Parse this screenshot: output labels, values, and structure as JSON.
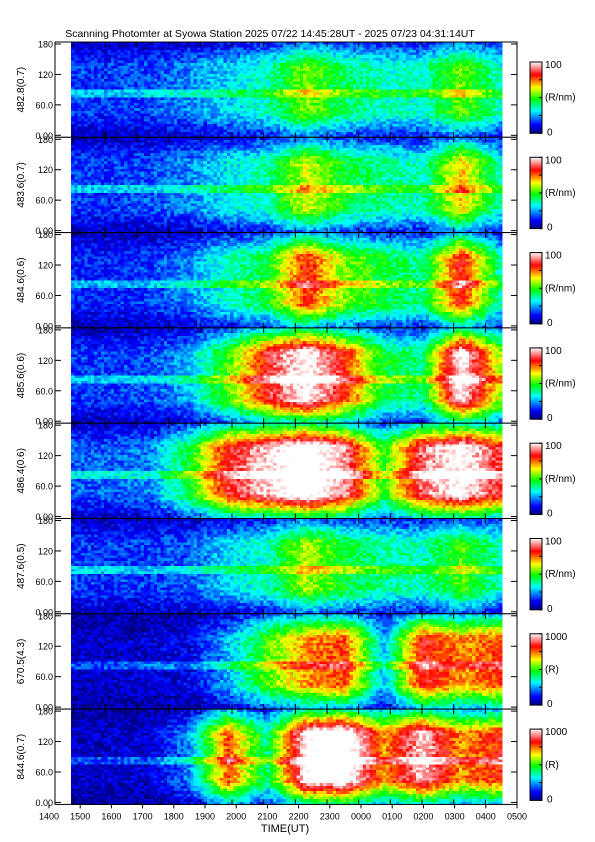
{
  "chart_data": {
    "type": "heatmap",
    "title": "Scanning Photomter at Syowa Station  2025 07/22 14:45:28UT - 2025 07/23 04:31:14UT",
    "xlabel": "TIME(UT)",
    "x_ticks": [
      "1400",
      "1500",
      "1600",
      "1700",
      "1800",
      "1900",
      "2000",
      "2100",
      "2200",
      "2300",
      "0000",
      "0100",
      "0200",
      "0300",
      "0400",
      "0500"
    ],
    "y_ticks": [
      "0.00",
      "60.0",
      "120",
      "180"
    ],
    "y_range": [
      0,
      180
    ],
    "colorscale": [
      "#000080",
      "#0000ff",
      "#00ffff",
      "#00ff00",
      "#ffff00",
      "#ff0000",
      "#ffffff"
    ],
    "panels": [
      {
        "ylabel": "482.8(0.7)",
        "unit": "(R/nm)",
        "cmax": "100",
        "cmin": "0",
        "intensity": [
          0.25,
          0.25,
          0.28,
          0.35,
          0.45,
          0.55,
          0.85,
          0.65,
          0.55,
          0.55,
          0.85,
          0.55
        ]
      },
      {
        "ylabel": "483.6(0.7)",
        "unit": "(R/nm)",
        "cmax": "100",
        "cmin": "0",
        "intensity": [
          0.25,
          0.25,
          0.28,
          0.35,
          0.48,
          0.58,
          0.95,
          0.7,
          0.6,
          0.55,
          1.05,
          0.55
        ]
      },
      {
        "ylabel": "484.6(0.6)",
        "unit": "(R/nm)",
        "cmax": "100",
        "cmin": "0",
        "intensity": [
          0.22,
          0.22,
          0.25,
          0.35,
          0.55,
          0.7,
          1.25,
          0.85,
          0.7,
          0.6,
          1.3,
          0.55
        ]
      },
      {
        "ylabel": "485.6(0.6)",
        "unit": "(R/nm)",
        "cmax": "100",
        "cmin": "0",
        "intensity": [
          0.25,
          0.25,
          0.28,
          0.4,
          0.8,
          1.3,
          1.6,
          1.25,
          0.7,
          0.6,
          1.6,
          0.9
        ]
      },
      {
        "ylabel": "486.4(0.6)",
        "unit": "(R/nm)",
        "cmax": "100",
        "cmin": "0",
        "intensity": [
          0.3,
          0.3,
          0.35,
          0.7,
          1.3,
          1.5,
          1.7,
          1.45,
          0.75,
          1.4,
          1.6,
          1.3
        ]
      },
      {
        "ylabel": "487.6(0.5)",
        "unit": "(R/nm)",
        "cmax": "100",
        "cmin": "0",
        "intensity": [
          0.25,
          0.25,
          0.25,
          0.3,
          0.45,
          0.55,
          0.9,
          0.7,
          0.6,
          0.55,
          0.8,
          0.55
        ]
      },
      {
        "ylabel": "670.5(4.3)",
        "unit": "(R)",
        "cmax": "1000",
        "cmin": "0",
        "intensity": [
          0.1,
          0.1,
          0.12,
          0.15,
          0.4,
          0.8,
          1.1,
          1.2,
          0.4,
          1.3,
          1.1,
          1.2
        ]
      },
      {
        "ylabel": "844.6(0.7)",
        "unit": "(R)",
        "cmax": "1000",
        "cmin": "0",
        "intensity": [
          0.1,
          0.1,
          0.12,
          0.35,
          1.2,
          0.6,
          1.6,
          1.7,
          1.1,
          1.5,
          1.1,
          1.25
        ]
      }
    ]
  }
}
